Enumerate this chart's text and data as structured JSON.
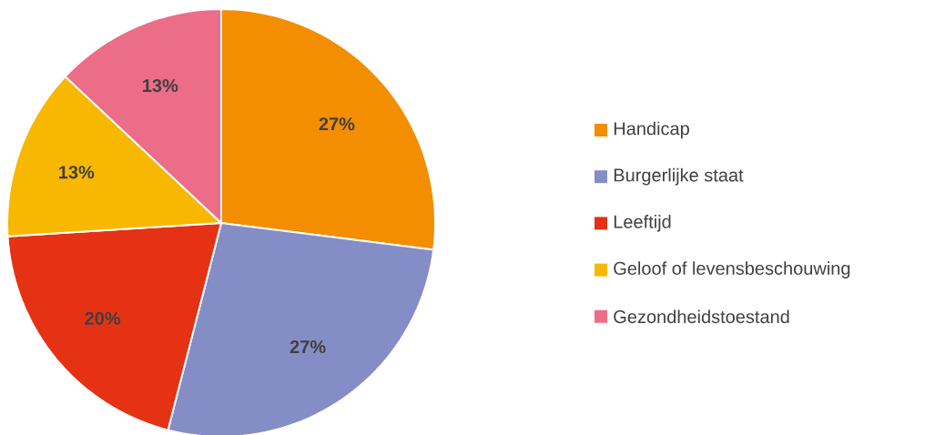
{
  "chart_data": {
    "type": "pie",
    "categories": [
      "Handicap",
      "Burgerlijke staat",
      "Leeftijd",
      "Geloof of levensbeschouwing",
      "Gezondheidstoestand"
    ],
    "values": [
      27,
      27,
      20,
      13,
      13
    ],
    "value_labels": [
      "27%",
      "27%",
      "20%",
      "13%",
      "13%"
    ],
    "colors": [
      "#f28e00",
      "#858dc6",
      "#e53215",
      "#f9b800",
      "#ec6d87"
    ],
    "legend": "right"
  }
}
